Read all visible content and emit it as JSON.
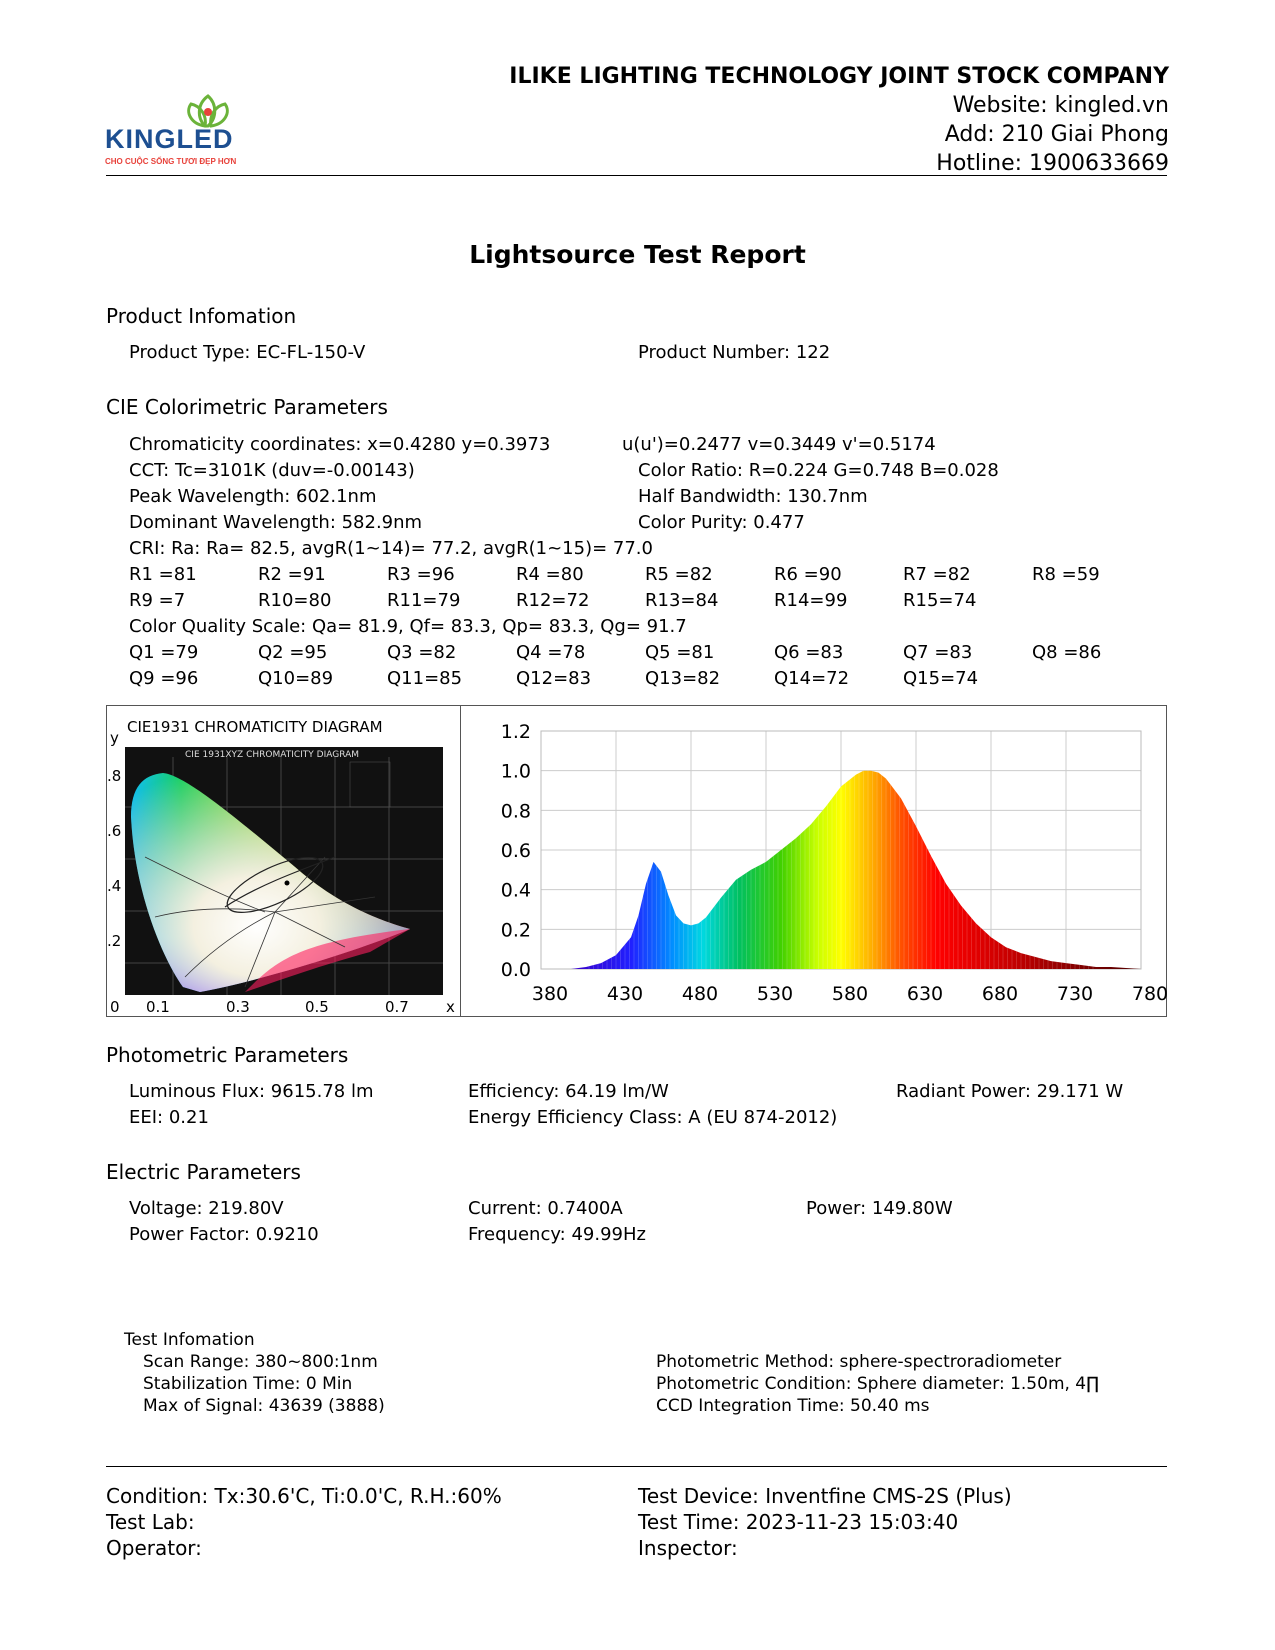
{
  "header": {
    "company": "ILIKE LIGHTING TECHNOLOGY JOINT STOCK COMPANY",
    "website": "Website: kingled.vn",
    "address": "Add: 210 Giai Phong",
    "hotline": "Hotline: 1900633669",
    "logo_text": "KINGLED",
    "logo_slogan": "CHO CUỘC SỐNG TƯƠI ĐẸP HƠN"
  },
  "title": "Lightsource Test Report",
  "product": {
    "heading": "Product Infomation",
    "type": "Product Type: EC-FL-150-V",
    "number": "Product Number: 122"
  },
  "cie": {
    "heading": "CIE Colorimetric Parameters",
    "chromaticity": "Chromaticity coordinates: x=0.4280 y=0.3973",
    "uv": "u(u')=0.2477 v=0.3449 v'=0.5174",
    "cct": "CCT: Tc=3101K (duv=-0.00143)",
    "color_ratio": "Color Ratio: R=0.224  G=0.748  B=0.028",
    "peak": "Peak Wavelength: 602.1nm",
    "half_bandwidth": "Half Bandwidth: 130.7nm",
    "dominant": "Dominant Wavelength: 582.9nm",
    "purity": "Color Purity: 0.477",
    "cri": "CRI: Ra: Ra= 82.5, avgR(1~14)= 77.2, avgR(1~15)= 77.0",
    "r_row1": [
      "R1 =81",
      "R2 =91",
      "R3 =96",
      "R4 =80",
      "R5 =82",
      "R6 =90",
      "R7 =82",
      "R8 =59"
    ],
    "r_row2": [
      "R9 =7",
      "R10=80",
      "R11=79",
      "R12=72",
      "R13=84",
      "R14=99",
      "R15=74"
    ],
    "cqs": "Color Quality Scale: Qa= 81.9, Qf= 83.3, Qp= 83.3, Qg= 91.7",
    "q_row1": [
      "Q1 =79",
      "Q2 =95",
      "Q3 =82",
      "Q4 =78",
      "Q5 =81",
      "Q6 =83",
      "Q7 =83",
      "Q8 =86"
    ],
    "q_row2": [
      "Q9 =96",
      "Q10=89",
      "Q11=85",
      "Q12=83",
      "Q13=82",
      "Q14=72",
      "Q15=74"
    ]
  },
  "diagram": {
    "title": "CIE1931 CHROMATICITY DIAGRAM",
    "inner_title": "CIE 1931XYZ CHROMATICITY DIAGRAM",
    "y_label": "y",
    "x_label": "x",
    "y_ticks": [
      ".8",
      ".6",
      ".4",
      ".2"
    ],
    "x_ticks": [
      "0",
      "0.1",
      "0.3",
      "0.5",
      "0.7"
    ],
    "point": {
      "x": 0.428,
      "y": 0.3973
    }
  },
  "chart_data": {
    "type": "area",
    "title": "",
    "xlabel": "",
    "ylabel": "",
    "xlim": [
      380,
      780
    ],
    "ylim": [
      0,
      1.2
    ],
    "x_ticks": [
      380,
      430,
      480,
      530,
      580,
      630,
      680,
      730,
      780
    ],
    "y_ticks": [
      "0.0",
      "0.2",
      "0.4",
      "0.6",
      "0.8",
      "1.0",
      "1.2"
    ],
    "grid": true,
    "series": [
      {
        "x": [
          400,
          410,
          420,
          430,
          440,
          445,
          450,
          455,
          460,
          465,
          470,
          475,
          480,
          485,
          490,
          500,
          510,
          520,
          530,
          540,
          550,
          560,
          570,
          580,
          590,
          595,
          600,
          605,
          610,
          620,
          630,
          640,
          650,
          660,
          670,
          680,
          690,
          700,
          710,
          720,
          730,
          740,
          750,
          760,
          770,
          780
        ],
        "values": [
          0.0,
          0.01,
          0.03,
          0.07,
          0.16,
          0.27,
          0.43,
          0.54,
          0.49,
          0.37,
          0.27,
          0.23,
          0.22,
          0.23,
          0.26,
          0.36,
          0.45,
          0.5,
          0.54,
          0.6,
          0.66,
          0.73,
          0.82,
          0.92,
          0.98,
          1.0,
          1.0,
          0.99,
          0.96,
          0.86,
          0.72,
          0.57,
          0.43,
          0.32,
          0.23,
          0.16,
          0.11,
          0.08,
          0.06,
          0.04,
          0.03,
          0.02,
          0.01,
          0.01,
          0.005,
          0.0
        ]
      }
    ]
  },
  "photometric": {
    "heading": "Photometric Parameters",
    "flux": "Luminous Flux: 9615.78 lm",
    "efficiency": "Efficiency: 64.19 lm/W",
    "radiant": "Radiant Power: 29.171 W",
    "eei": "EEI:  0.21",
    "energy_class": "Energy Efficiency Class: A (EU 874-2012)"
  },
  "electric": {
    "heading": "Electric Parameters",
    "voltage": "Voltage: 219.80V",
    "current": "Current: 0.7400A",
    "power": "Power: 149.80W",
    "pf": "Power Factor: 0.9210",
    "frequency": "Frequency: 49.99Hz"
  },
  "test_info": {
    "heading": "Test Infomation",
    "scan_range": "Scan Range: 380~800:1nm",
    "stabilization": "Stabilization Time: 0 Min",
    "max_signal": "Max of Signal: 43639 (3888)",
    "method": "Photometric Method: sphere-spectroradiometer",
    "condition": "Photometric Condition: Sphere diameter: 1.50m, 4∏",
    "ccd": "CCD Integration Time: 50.40 ms"
  },
  "footer": {
    "condition": "Condition: Tx:30.6'C, Ti:0.0'C, R.H.:60%",
    "device": "Test Device: Inventfine CMS-2S (Plus)",
    "lab": "Test Lab:",
    "time": "Test Time: 2023-11-23 15:03:40",
    "operator": "Operator:",
    "inspector": "Inspector:"
  }
}
